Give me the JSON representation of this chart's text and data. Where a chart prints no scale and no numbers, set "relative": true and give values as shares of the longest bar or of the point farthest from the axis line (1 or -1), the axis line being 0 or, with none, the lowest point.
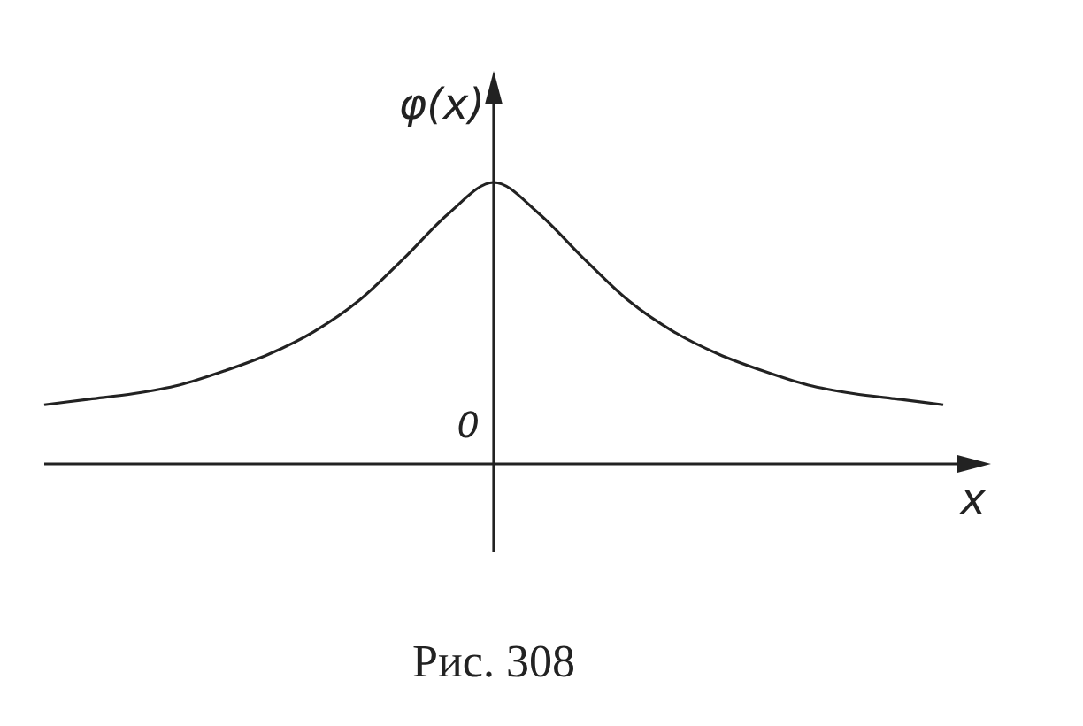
{
  "chart_data": {
    "type": "line",
    "relative": true,
    "xlabel": "x",
    "ylabel": "φ(x)",
    "categories": [
      null,
      null,
      null,
      null,
      null,
      null,
      null,
      null,
      null,
      null,
      null,
      null,
      null,
      null,
      null,
      null,
      null,
      null,
      null,
      null,
      null
    ],
    "series": [
      {
        "color": "#222222",
        "values": [
          0.21,
          0.23,
          0.25,
          0.28,
          0.33,
          0.39,
          0.47,
          0.58,
          0.73,
          0.89,
          1.0,
          0.89,
          0.73,
          0.58,
          0.47,
          0.39,
          0.33,
          0.28,
          0.25,
          0.23,
          0.21
        ]
      }
    ],
    "annotations": [
      "0",
      "Рис. 308"
    ]
  }
}
